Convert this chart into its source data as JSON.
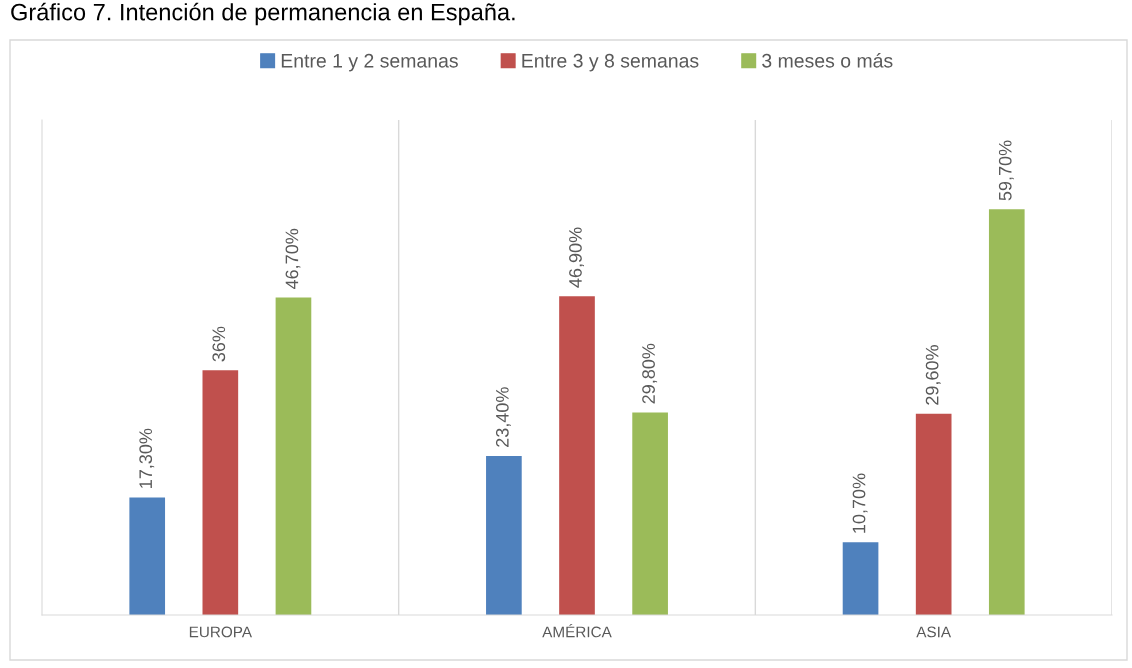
{
  "chart_data": {
    "type": "bar",
    "title": "Gráfico 7. Intención de permanencia en España.",
    "categories": [
      "EUROPA",
      "AMÉRICA",
      "ASIA"
    ],
    "series": [
      {
        "name": "Entre 1 y 2 semanas",
        "color": "#4f81bd",
        "values": [
          17.3,
          23.4,
          10.7
        ],
        "value_labels": [
          "17,30%",
          "23,40%",
          "10,70%"
        ]
      },
      {
        "name": "Entre 3 y 8 semanas",
        "color": "#c0504d",
        "values": [
          36,
          46.9,
          29.6
        ],
        "value_labels": [
          "36%",
          "46,90%",
          "29,60%"
        ]
      },
      {
        "name": "3 meses o más",
        "color": "#9bbb59",
        "values": [
          46.7,
          29.8,
          59.7
        ],
        "value_labels": [
          "46,70%",
          "29,80%",
          "59,70%"
        ]
      }
    ],
    "legend": "top"
  }
}
